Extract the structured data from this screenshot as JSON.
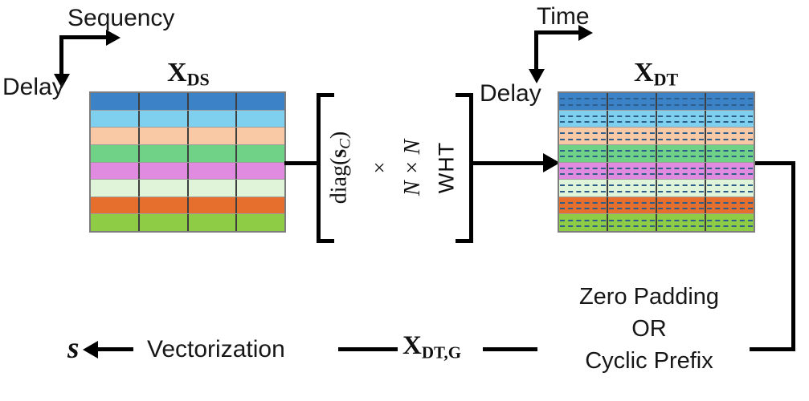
{
  "axes": {
    "left": {
      "horizontal": "Sequency",
      "vertical": "Delay"
    },
    "right": {
      "horizontal": "Time",
      "vertical": "Delay"
    }
  },
  "matrices": {
    "left": {
      "label_base": "X",
      "label_sub": "DS",
      "cols": 4,
      "row_colors": [
        "#3c82c6",
        "#7fd0ef",
        "#f9c9a5",
        "#6fd287",
        "#e08ae0",
        "#e0f4d9",
        "#e76f2d",
        "#8fcc45"
      ]
    },
    "right": {
      "label_base": "X",
      "label_sub": "DT",
      "cols": 4,
      "row_colors": [
        "#3c82c6",
        "#7fd0ef",
        "#f9c9a5",
        "#6fd287",
        "#e08ae0",
        "#e0f4d9",
        "#e76f2d",
        "#8fcc45"
      ],
      "dash_color": "#2e5f8c"
    }
  },
  "operator_bracket": {
    "diag_prefix": "diag(",
    "diag_s": "s",
    "diag_sub": "C",
    "diag_suffix": ")",
    "times": "×",
    "dimension": "N × N",
    "transform": "WHT"
  },
  "flow": {
    "output_symbol": "s",
    "vectorization_label": "Vectorization",
    "guarded_base": "X",
    "guarded_sub": "DT,G",
    "padding_lines": [
      "Zero Padding",
      "OR",
      "Cyclic Prefix"
    ]
  },
  "colors": {
    "line": "#000000",
    "text": "#171717"
  }
}
